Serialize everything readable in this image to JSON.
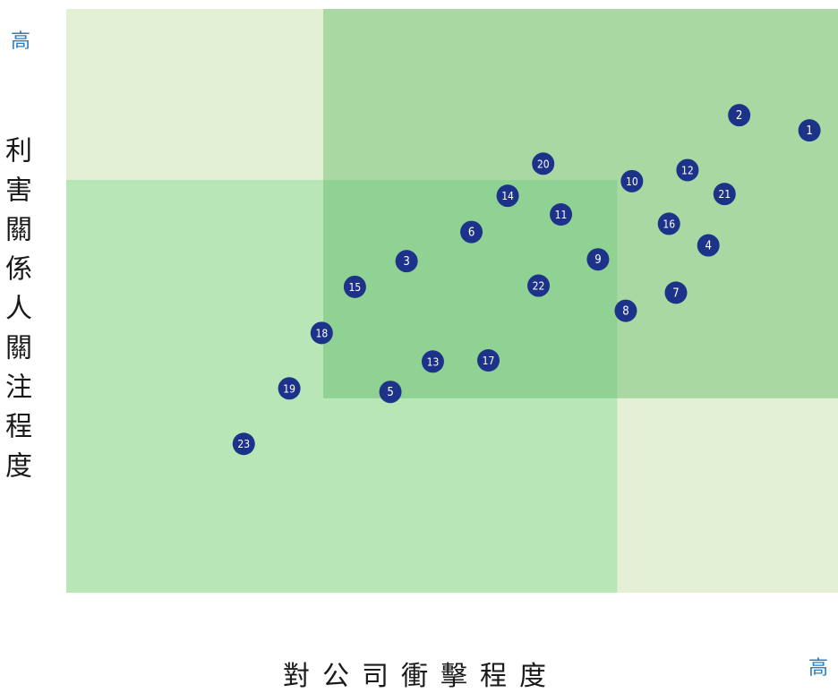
{
  "chart_data": {
    "type": "scatter",
    "xlabel": "對公司衝擊程度",
    "ylabel": "利害關係人關注程度",
    "x_high_label": "高",
    "y_high_label": "高",
    "xlim": [
      0,
      100
    ],
    "ylim": [
      0,
      100
    ],
    "zones": [
      {
        "name": "high-high",
        "x": [
          33.3,
          100
        ],
        "y": [
          33.3,
          100
        ],
        "color": "#a9d8a3"
      },
      {
        "name": "mid-mid",
        "x": [
          0,
          71.4
        ],
        "y": [
          0,
          70.7
        ],
        "color": "#b8e6b7"
      },
      {
        "name": "overlap",
        "x": [
          33.3,
          71.4
        ],
        "y": [
          33.3,
          70.7
        ],
        "color": "#8fd293"
      },
      {
        "name": "low",
        "color": "#e3f0d5"
      }
    ],
    "points": [
      {
        "label": "1",
        "x": 96.3,
        "y": 79.2
      },
      {
        "label": "2",
        "x": 87.2,
        "y": 81.8
      },
      {
        "label": "3",
        "x": 44.1,
        "y": 56.8
      },
      {
        "label": "4",
        "x": 83.2,
        "y": 59.5
      },
      {
        "label": "5",
        "x": 42.0,
        "y": 34.4
      },
      {
        "label": "6",
        "x": 52.5,
        "y": 61.8
      },
      {
        "label": "7",
        "x": 79.0,
        "y": 51.4
      },
      {
        "label": "8",
        "x": 72.5,
        "y": 48.3
      },
      {
        "label": "9",
        "x": 68.9,
        "y": 57.1
      },
      {
        "label": "10",
        "x": 73.3,
        "y": 70.5
      },
      {
        "label": "11",
        "x": 64.1,
        "y": 64.8
      },
      {
        "label": "12",
        "x": 80.5,
        "y": 72.4
      },
      {
        "label": "13",
        "x": 47.5,
        "y": 39.6
      },
      {
        "label": "14",
        "x": 57.2,
        "y": 68.0
      },
      {
        "label": "15",
        "x": 37.4,
        "y": 52.4
      },
      {
        "label": "16",
        "x": 78.1,
        "y": 63.2
      },
      {
        "label": "17",
        "x": 54.7,
        "y": 39.8
      },
      {
        "label": "18",
        "x": 33.1,
        "y": 44.5
      },
      {
        "label": "19",
        "x": 28.9,
        "y": 35.0
      },
      {
        "label": "20",
        "x": 61.8,
        "y": 73.5
      },
      {
        "label": "21",
        "x": 85.3,
        "y": 68.3
      },
      {
        "label": "22",
        "x": 61.2,
        "y": 52.6
      },
      {
        "label": "23",
        "x": 23.0,
        "y": 25.5
      }
    ],
    "colors": {
      "point": "#1d3389",
      "point_text": "#ffffff",
      "high_label": "#2a7fc1",
      "axis_text": "#1a1a1a"
    }
  }
}
